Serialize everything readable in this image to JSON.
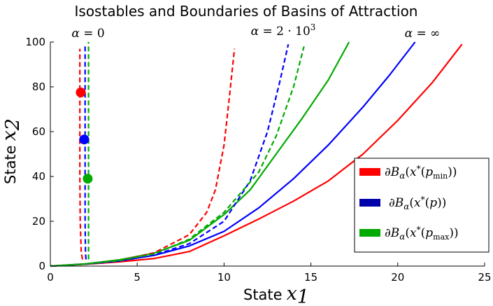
{
  "chart_data": {
    "type": "line",
    "title": "Isostables and Boundaries of Basins of Attraction",
    "xlabel_text": "State",
    "xlabel_var": "x",
    "xlabel_sub": "1",
    "ylabel_text": "State",
    "ylabel_var": "x",
    "ylabel_sub": "2",
    "xlim": [
      0,
      25
    ],
    "ylim": [
      0,
      100
    ],
    "xticks": [
      0,
      5,
      10,
      15,
      20,
      25
    ],
    "yticks": [
      0,
      20,
      40,
      60,
      80,
      100
    ],
    "grid": false,
    "legend_position": "right",
    "annotations": [
      {
        "id": "alpha0",
        "symbol": "α",
        "text": " = 0",
        "at": [
          2.0,
          102
        ]
      },
      {
        "id": "alpha2k",
        "symbol": "α",
        "text": " = 2 · 10",
        "sup": "3",
        "at": [
          11.5,
          102
        ]
      },
      {
        "id": "alphainf",
        "symbol": "α",
        "text": " = ∞",
        "at": [
          20.5,
          102
        ]
      }
    ],
    "legend": [
      {
        "color": "#ff0000",
        "prefix": "∂",
        "script": "B",
        "sub": "α",
        "body": "(",
        "var": "x",
        "star": "*",
        "arg": "(",
        "p": "p",
        "psub": "min",
        "close": "))"
      },
      {
        "color": "#0000aa",
        "prefix": "∂",
        "script": "B",
        "sub": "α",
        "body": "(",
        "var": "x",
        "star": "*",
        "arg": "(",
        "p": "p",
        "psub": "",
        "close": "))"
      },
      {
        "color": "#00aa00",
        "prefix": "∂",
        "script": "B",
        "sub": "α",
        "body": "(",
        "var": "x",
        "star": "*",
        "arg": "(",
        "p": "p",
        "psub": "max",
        "close": "))"
      }
    ],
    "series": [
      {
        "color": "#ff0000",
        "style": "solid",
        "width": 2.2,
        "x": [
          0,
          2,
          4,
          6,
          8,
          10,
          12,
          14,
          16,
          18,
          20,
          22,
          23.7
        ],
        "y": [
          0,
          0.8,
          1.9,
          3.4,
          6.5,
          13.5,
          21,
          29,
          38,
          50,
          65,
          82,
          99
        ]
      },
      {
        "color": "#0000ff",
        "style": "solid",
        "width": 2.2,
        "x": [
          0,
          2,
          4,
          6,
          8,
          10,
          12,
          14,
          16,
          18,
          19.5,
          21
        ],
        "y": [
          0,
          0.9,
          2.3,
          4.8,
          9,
          15.5,
          26,
          39,
          54,
          71,
          85,
          100
        ]
      },
      {
        "color": "#00aa00",
        "style": "solid",
        "width": 2.2,
        "x": [
          0,
          2,
          4,
          6,
          8,
          10,
          11.5,
          13,
          14.5,
          16,
          17.2
        ],
        "y": [
          0,
          1,
          2.8,
          5.8,
          11.5,
          23,
          34,
          50,
          66,
          83,
          100
        ]
      },
      {
        "color": "#ff0000",
        "style": "dashed",
        "width": 2.2,
        "x": [
          0,
          2,
          4,
          6,
          8,
          9,
          9.5,
          10,
          10.3,
          10.6
        ],
        "y": [
          0,
          0.9,
          2.5,
          6,
          14,
          24,
          34,
          54,
          75,
          97
        ]
      },
      {
        "color": "#0000ff",
        "style": "dashed",
        "width": 2.2,
        "x": [
          0,
          2,
          4,
          6,
          8,
          10,
          11.5,
          12.5,
          13.2,
          13.7
        ],
        "y": [
          0,
          0.9,
          2.3,
          5,
          10,
          20,
          38,
          60,
          82,
          99
        ]
      },
      {
        "color": "#00aa00",
        "style": "dashed",
        "width": 2.2,
        "x": [
          0,
          2,
          4,
          6,
          8,
          10,
          12,
          13,
          14,
          14.6
        ],
        "y": [
          0,
          0.9,
          2.5,
          5.5,
          12,
          24,
          42,
          58,
          80,
          98
        ]
      },
      {
        "color": "#ff0000",
        "style": "dashed",
        "width": 2.2,
        "x": [
          1.85,
          1.78,
          1.72,
          1.7,
          1.7,
          1.7,
          1.7
        ],
        "y": [
          3,
          6,
          20,
          40,
          60,
          80,
          97
        ]
      },
      {
        "color": "#0000ff",
        "style": "dashed",
        "width": 2.2,
        "x": [
          2.05,
          2.02,
          2.0,
          2.0,
          2.0,
          2.0,
          2.0
        ],
        "y": [
          3,
          6,
          20,
          40,
          60,
          80,
          99
        ]
      },
      {
        "color": "#00aa00",
        "style": "dashed",
        "width": 2.2,
        "x": [
          2.2,
          2.2,
          2.2,
          2.2,
          2.2,
          2.2
        ],
        "y": [
          3,
          20,
          40,
          60,
          80,
          100
        ]
      }
    ],
    "markers": [
      {
        "color": "#ff0000",
        "x": 1.75,
        "y": 77.5
      },
      {
        "color": "#0000ff",
        "x": 1.95,
        "y": 56.5
      },
      {
        "color": "#00aa00",
        "x": 2.15,
        "y": 39
      }
    ]
  }
}
